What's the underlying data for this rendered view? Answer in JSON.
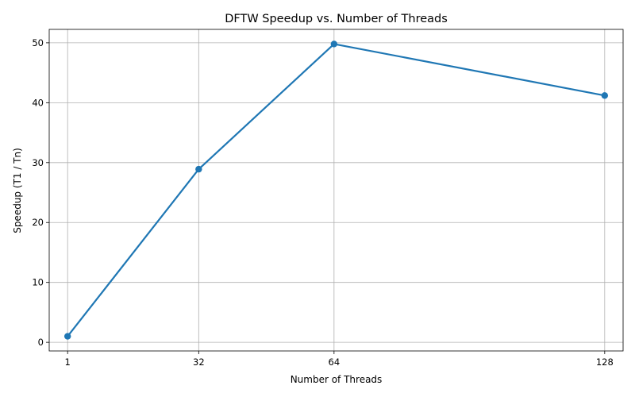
{
  "chart_data": {
    "type": "line",
    "title": "DFTW Speedup vs. Number of Threads",
    "xlabel": "Number of Threads",
    "ylabel": "Speedup (T1 / Tn)",
    "x": [
      1,
      32,
      64,
      128
    ],
    "xticks": [
      "1",
      "32",
      "64",
      "128"
    ],
    "xlim": [
      -3.35,
      132.35
    ],
    "ylim": [
      -1.44,
      52.24
    ],
    "yticks": [
      0,
      10,
      20,
      30,
      40,
      50
    ],
    "grid": true,
    "series": [
      {
        "values": [
          1.0,
          28.9,
          49.8,
          41.2
        ],
        "color": "#1f77b4",
        "marker": "circle"
      }
    ]
  }
}
